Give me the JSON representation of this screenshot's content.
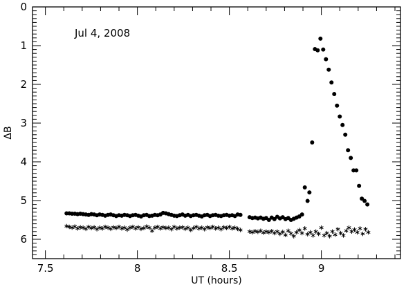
{
  "chart_data": {
    "type": "scatter",
    "title": "",
    "xlabel": "UT (hours)",
    "ylabel": "ΔB",
    "annotation": "Jul 4, 2008",
    "xlim": [
      7.43,
      9.43
    ],
    "ylim": [
      6.5,
      0
    ],
    "y_inverted": true,
    "grid": false,
    "x_ticks": [
      7.5,
      8,
      8.5,
      9
    ],
    "x_tick_labels": [
      "7.5",
      "8",
      "8.5",
      "9"
    ],
    "y_ticks": [
      0,
      1,
      2,
      3,
      4,
      5,
      6
    ],
    "y_tick_labels": [
      "0",
      "1",
      "2",
      "3",
      "4",
      "5",
      "6"
    ],
    "series": [
      {
        "marker": "circle",
        "points": [
          [
            7.615,
            5.33
          ],
          [
            7.63,
            5.33
          ],
          [
            7.645,
            5.34
          ],
          [
            7.66,
            5.34
          ],
          [
            7.675,
            5.35
          ],
          [
            7.69,
            5.34
          ],
          [
            7.705,
            5.35
          ],
          [
            7.72,
            5.36
          ],
          [
            7.735,
            5.37
          ],
          [
            7.75,
            5.35
          ],
          [
            7.765,
            5.36
          ],
          [
            7.78,
            5.38
          ],
          [
            7.795,
            5.36
          ],
          [
            7.81,
            5.37
          ],
          [
            7.825,
            5.39
          ],
          [
            7.84,
            5.37
          ],
          [
            7.855,
            5.36
          ],
          [
            7.87,
            5.38
          ],
          [
            7.885,
            5.4
          ],
          [
            7.9,
            5.38
          ],
          [
            7.915,
            5.39
          ],
          [
            7.93,
            5.37
          ],
          [
            7.945,
            5.38
          ],
          [
            7.96,
            5.4
          ],
          [
            7.975,
            5.38
          ],
          [
            7.99,
            5.37
          ],
          [
            8.005,
            5.39
          ],
          [
            8.02,
            5.41
          ],
          [
            8.035,
            5.38
          ],
          [
            8.05,
            5.37
          ],
          [
            8.065,
            5.4
          ],
          [
            8.08,
            5.39
          ],
          [
            8.095,
            5.37
          ],
          [
            8.11,
            5.38
          ],
          [
            8.125,
            5.36
          ],
          [
            8.14,
            5.32
          ],
          [
            8.155,
            5.33
          ],
          [
            8.17,
            5.35
          ],
          [
            8.185,
            5.37
          ],
          [
            8.2,
            5.39
          ],
          [
            8.215,
            5.4
          ],
          [
            8.23,
            5.38
          ],
          [
            8.245,
            5.36
          ],
          [
            8.26,
            5.39
          ],
          [
            8.275,
            5.37
          ],
          [
            8.29,
            5.4
          ],
          [
            8.305,
            5.38
          ],
          [
            8.32,
            5.37
          ],
          [
            8.335,
            5.39
          ],
          [
            8.35,
            5.41
          ],
          [
            8.365,
            5.38
          ],
          [
            8.38,
            5.37
          ],
          [
            8.395,
            5.4
          ],
          [
            8.41,
            5.38
          ],
          [
            8.425,
            5.37
          ],
          [
            8.44,
            5.39
          ],
          [
            8.455,
            5.4
          ],
          [
            8.47,
            5.38
          ],
          [
            8.485,
            5.37
          ],
          [
            8.5,
            5.39
          ],
          [
            8.515,
            5.38
          ],
          [
            8.53,
            5.4
          ],
          [
            8.545,
            5.36
          ],
          [
            8.56,
            5.37
          ],
          [
            8.61,
            5.43
          ],
          [
            8.625,
            5.45
          ],
          [
            8.64,
            5.44
          ],
          [
            8.655,
            5.46
          ],
          [
            8.67,
            5.44
          ],
          [
            8.685,
            5.47
          ],
          [
            8.7,
            5.45
          ],
          [
            8.715,
            5.5
          ],
          [
            8.73,
            5.44
          ],
          [
            8.745,
            5.48
          ],
          [
            8.76,
            5.42
          ],
          [
            8.775,
            5.46
          ],
          [
            8.79,
            5.43
          ],
          [
            8.805,
            5.48
          ],
          [
            8.82,
            5.45
          ],
          [
            8.835,
            5.5
          ],
          [
            8.85,
            5.47
          ],
          [
            8.865,
            5.44
          ],
          [
            8.88,
            5.41
          ],
          [
            8.895,
            5.36
          ],
          [
            8.91,
            4.66
          ],
          [
            8.925,
            5.01
          ],
          [
            8.935,
            4.79
          ],
          [
            8.95,
            3.5
          ],
          [
            8.965,
            1.09
          ],
          [
            8.98,
            1.12
          ],
          [
            8.995,
            0.82
          ],
          [
            9.01,
            1.1
          ],
          [
            9.025,
            1.35
          ],
          [
            9.04,
            1.62
          ],
          [
            9.055,
            1.95
          ],
          [
            9.07,
            2.25
          ],
          [
            9.085,
            2.55
          ],
          [
            9.1,
            2.83
          ],
          [
            9.115,
            3.05
          ],
          [
            9.13,
            3.3
          ],
          [
            9.145,
            3.7
          ],
          [
            9.16,
            3.9
          ],
          [
            9.175,
            4.22
          ],
          [
            9.19,
            4.22
          ],
          [
            9.205,
            4.62
          ],
          [
            9.22,
            4.95
          ],
          [
            9.235,
            5.01
          ],
          [
            9.25,
            5.1
          ]
        ]
      },
      {
        "marker": "star",
        "points": [
          [
            7.615,
            5.66
          ],
          [
            7.63,
            5.68
          ],
          [
            7.645,
            5.7
          ],
          [
            7.66,
            5.67
          ],
          [
            7.675,
            5.72
          ],
          [
            7.69,
            5.69
          ],
          [
            7.705,
            5.7
          ],
          [
            7.72,
            5.73
          ],
          [
            7.735,
            5.68
          ],
          [
            7.75,
            5.71
          ],
          [
            7.765,
            5.69
          ],
          [
            7.78,
            5.74
          ],
          [
            7.795,
            5.7
          ],
          [
            7.81,
            5.72
          ],
          [
            7.825,
            5.68
          ],
          [
            7.84,
            5.7
          ],
          [
            7.855,
            5.73
          ],
          [
            7.87,
            5.69
          ],
          [
            7.885,
            5.71
          ],
          [
            7.9,
            5.68
          ],
          [
            7.915,
            5.72
          ],
          [
            7.93,
            5.7
          ],
          [
            7.945,
            5.75
          ],
          [
            7.96,
            5.7
          ],
          [
            7.975,
            5.68
          ],
          [
            7.99,
            5.72
          ],
          [
            8.005,
            5.69
          ],
          [
            8.02,
            5.73
          ],
          [
            8.035,
            5.71
          ],
          [
            8.05,
            5.67
          ],
          [
            8.065,
            5.7
          ],
          [
            8.08,
            5.78
          ],
          [
            8.095,
            5.7
          ],
          [
            8.11,
            5.68
          ],
          [
            8.125,
            5.72
          ],
          [
            8.14,
            5.69
          ],
          [
            8.155,
            5.71
          ],
          [
            8.17,
            5.7
          ],
          [
            8.185,
            5.74
          ],
          [
            8.2,
            5.68
          ],
          [
            8.215,
            5.72
          ],
          [
            8.23,
            5.7
          ],
          [
            8.245,
            5.69
          ],
          [
            8.26,
            5.73
          ],
          [
            8.275,
            5.7
          ],
          [
            8.29,
            5.76
          ],
          [
            8.305,
            5.71
          ],
          [
            8.32,
            5.68
          ],
          [
            8.335,
            5.72
          ],
          [
            8.35,
            5.7
          ],
          [
            8.365,
            5.74
          ],
          [
            8.38,
            5.69
          ],
          [
            8.395,
            5.71
          ],
          [
            8.41,
            5.68
          ],
          [
            8.425,
            5.72
          ],
          [
            8.44,
            5.7
          ],
          [
            8.455,
            5.74
          ],
          [
            8.47,
            5.69
          ],
          [
            8.485,
            5.71
          ],
          [
            8.5,
            5.68
          ],
          [
            8.515,
            5.72
          ],
          [
            8.53,
            5.7
          ],
          [
            8.545,
            5.73
          ],
          [
            8.56,
            5.76
          ],
          [
            8.61,
            5.8
          ],
          [
            8.625,
            5.82
          ],
          [
            8.64,
            5.79
          ],
          [
            8.655,
            5.81
          ],
          [
            8.67,
            5.78
          ],
          [
            8.685,
            5.83
          ],
          [
            8.7,
            5.8
          ],
          [
            8.715,
            5.82
          ],
          [
            8.73,
            5.79
          ],
          [
            8.745,
            5.84
          ],
          [
            8.76,
            5.8
          ],
          [
            8.775,
            5.86
          ],
          [
            8.79,
            5.81
          ],
          [
            8.805,
            5.89
          ],
          [
            8.82,
            5.78
          ],
          [
            8.835,
            5.85
          ],
          [
            8.85,
            5.92
          ],
          [
            8.865,
            5.82
          ],
          [
            8.88,
            5.76
          ],
          [
            8.895,
            5.84
          ],
          [
            8.91,
            5.72
          ],
          [
            8.925,
            5.87
          ],
          [
            8.94,
            5.82
          ],
          [
            8.955,
            5.9
          ],
          [
            8.97,
            5.8
          ],
          [
            8.985,
            5.86
          ],
          [
            9.0,
            5.7
          ],
          [
            9.015,
            5.9
          ],
          [
            9.03,
            5.84
          ],
          [
            9.045,
            5.92
          ],
          [
            9.06,
            5.8
          ],
          [
            9.075,
            5.88
          ],
          [
            9.09,
            5.74
          ],
          [
            9.105,
            5.84
          ],
          [
            9.12,
            5.9
          ],
          [
            9.135,
            5.78
          ],
          [
            9.15,
            5.7
          ],
          [
            9.165,
            5.8
          ],
          [
            9.18,
            5.75
          ],
          [
            9.195,
            5.82
          ],
          [
            9.21,
            5.72
          ],
          [
            9.225,
            5.86
          ],
          [
            9.24,
            5.74
          ],
          [
            9.255,
            5.82
          ]
        ]
      }
    ]
  }
}
